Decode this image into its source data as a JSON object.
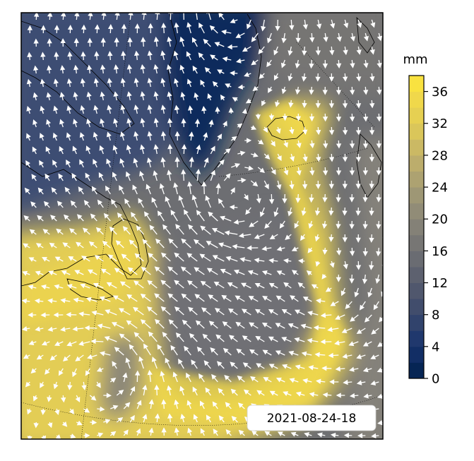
{
  "chart_data": {
    "type": "heatmap",
    "title": "",
    "description_kind": "map-field",
    "variable_unit": "mm",
    "timestamp": "2021-08-24-18",
    "colorbar": {
      "unit_label": "mm",
      "min": 0,
      "max": 38,
      "levels_step": 2,
      "ticks": [
        0,
        4,
        8,
        12,
        16,
        20,
        24,
        28,
        32,
        36
      ],
      "tick_labels": [
        "0",
        "4",
        "8",
        "12",
        "16",
        "20",
        "24",
        "28",
        "32",
        "36"
      ],
      "colormap_stops": [
        {
          "value": 0,
          "color": "#00204c"
        },
        {
          "value": 4,
          "color": "#18336d"
        },
        {
          "value": 8,
          "color": "#39486b"
        },
        {
          "value": 12,
          "color": "#575c6d"
        },
        {
          "value": 16,
          "color": "#707173"
        },
        {
          "value": 20,
          "color": "#8a8678"
        },
        {
          "value": 24,
          "color": "#a59c74"
        },
        {
          "value": 28,
          "color": "#c3b369"
        },
        {
          "value": 32,
          "color": "#e1cc55"
        },
        {
          "value": 36,
          "color": "#f5dc48"
        },
        {
          "value": 38,
          "color": "#fde737"
        }
      ]
    },
    "vector_color": "#ffffff",
    "coastline_color": "#000000"
  }
}
